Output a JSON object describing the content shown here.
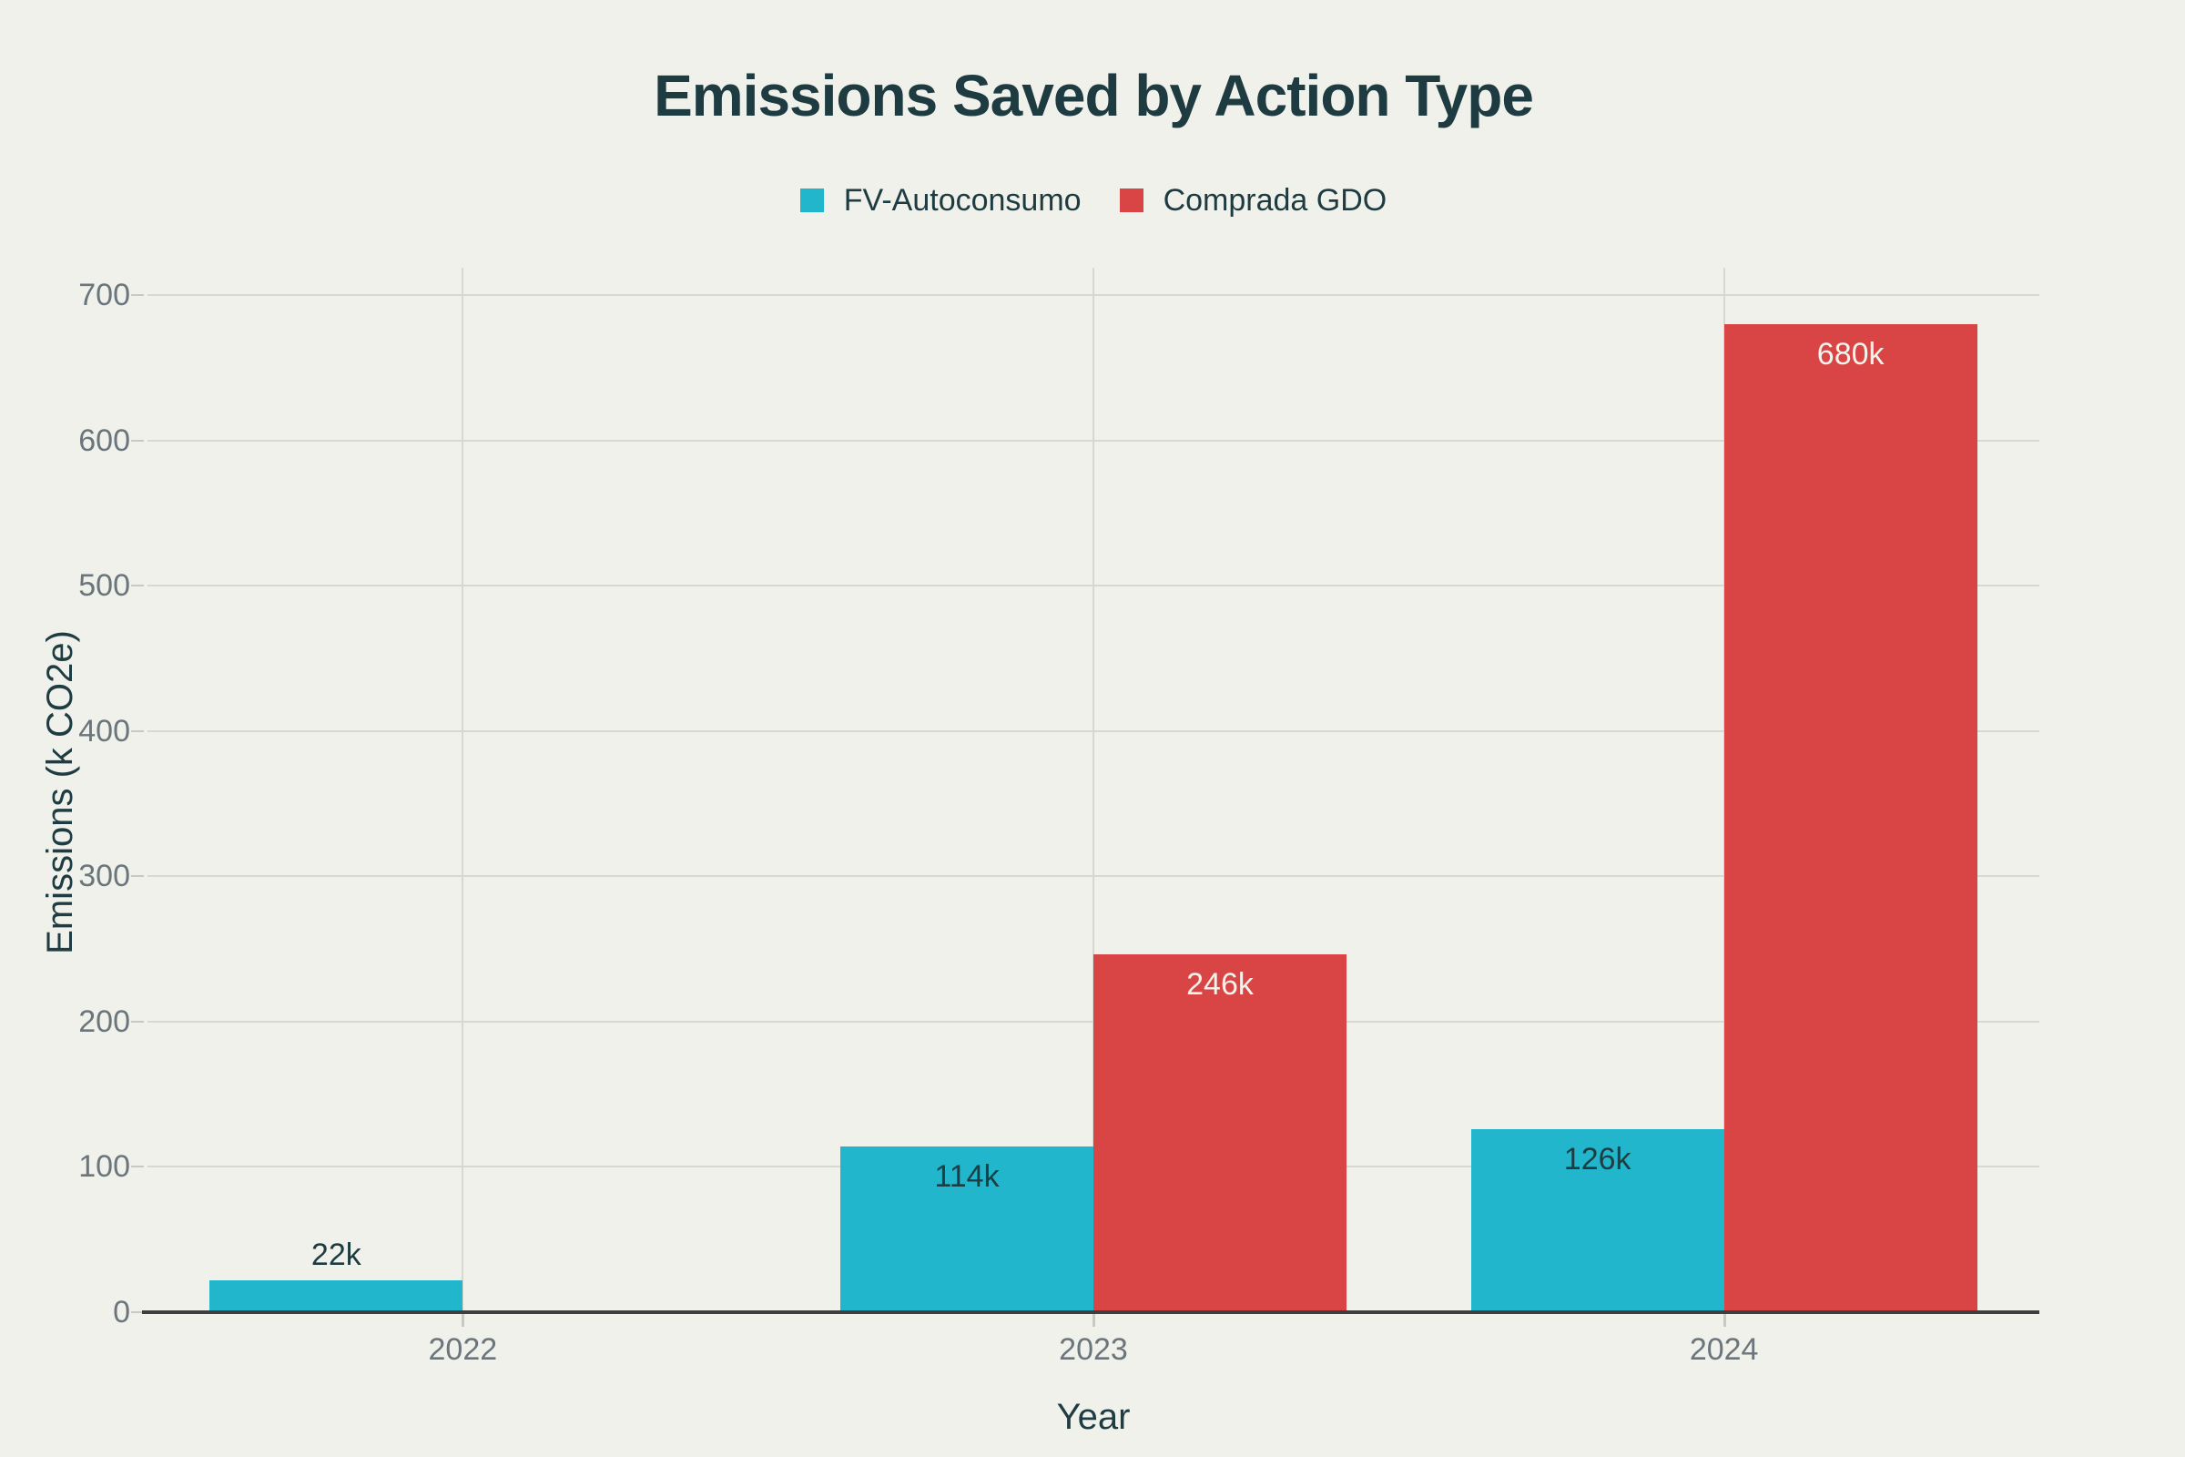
{
  "chart_data": {
    "type": "bar",
    "title": "Emissions Saved by Action Type",
    "xlabel": "Year",
    "ylabel": "Emissions (k CO2e)",
    "categories": [
      "2022",
      "2023",
      "2024"
    ],
    "series": [
      {
        "name": "FV-Autoconsumo",
        "color": "#21b6cb",
        "values": [
          22,
          114,
          126
        ],
        "value_labels": [
          "22k",
          "114k",
          "126k"
        ],
        "label_color": "#1e3d43"
      },
      {
        "name": "Comprada GDO",
        "color": "#d94545",
        "values": [
          0,
          246,
          680
        ],
        "value_labels": [
          "",
          "246k",
          "680k"
        ],
        "label_color": "#f2f3ec"
      }
    ],
    "ylim": [
      0,
      700
    ],
    "yticks": [
      0,
      100,
      200,
      300,
      400,
      500,
      600,
      700
    ],
    "grid": true,
    "legend_position": "top"
  },
  "colors": {
    "background": "#f0f1ea",
    "title_text": "#1d3b41",
    "axis_title_text": "#1e3c42",
    "tick_text": "#6a757c",
    "gridline": "#d9d8d0",
    "tick_mark": "#c9c9c0",
    "axis_line": "#3d3e3e"
  }
}
